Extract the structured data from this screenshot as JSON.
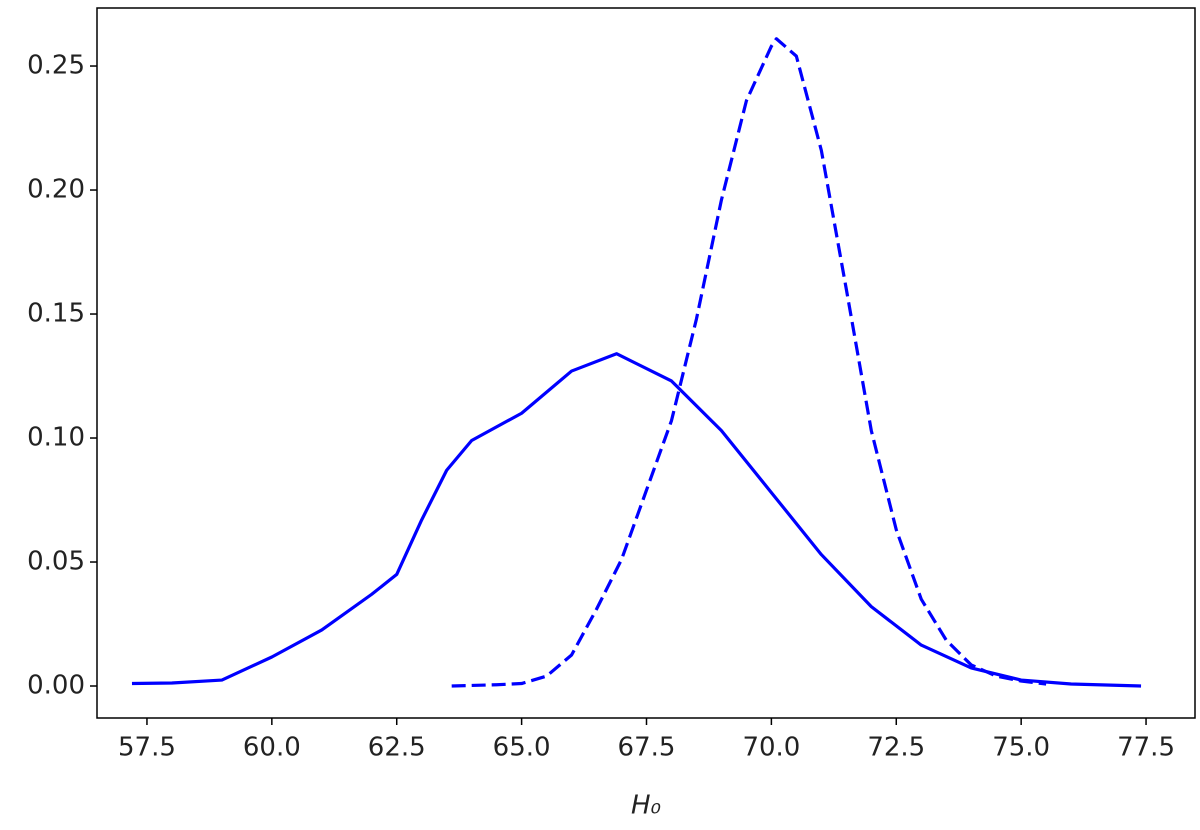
{
  "chart_data": {
    "type": "line",
    "xlabel": "H₀",
    "xlim": [
      56.5,
      78.48
    ],
    "ylim": [
      -0.0129,
      0.2734
    ],
    "xticks": [
      57.5,
      {
        "value": 60,
        "label": "60.0"
      },
      62.5,
      {
        "value": 65,
        "label": "65.0"
      },
      67.5,
      {
        "value": 70,
        "label": "70.0"
      },
      72.5,
      {
        "value": 75,
        "label": "75.0"
      },
      77.5
    ],
    "yticks": [
      {
        "value": 0,
        "label": "0.00"
      },
      0.05,
      {
        "value": 0.1,
        "label": "0.10"
      },
      0.15,
      {
        "value": 0.2,
        "label": "0.20"
      },
      0.25
    ],
    "grid": false,
    "series": [
      {
        "color": "#0000ff",
        "dash": false,
        "x": [
          57.2,
          58,
          59,
          60,
          61,
          62,
          62.5,
          63,
          63.5,
          64,
          65,
          66,
          66.9,
          68,
          69,
          70,
          71,
          72,
          73,
          74,
          75,
          76,
          77.4
        ],
        "values": [
          0.001,
          0.0012,
          0.0024,
          0.0117,
          0.0226,
          0.037,
          0.045,
          0.067,
          0.087,
          0.099,
          0.11,
          0.127,
          0.134,
          0.123,
          0.103,
          0.078,
          0.053,
          0.032,
          0.0165,
          0.0073,
          0.0024,
          0.0008,
          0
        ]
      },
      {
        "color": "#0000ff",
        "dash": true,
        "x": [
          63.6,
          64.5,
          65,
          65.5,
          66,
          66.5,
          67,
          67.5,
          68,
          68.5,
          69,
          69.5,
          70,
          70.1,
          70.5,
          71,
          71.5,
          72,
          72.5,
          73,
          73.5,
          74,
          74.5,
          75,
          75.5
        ],
        "values": [
          0,
          0.0005,
          0.001,
          0.004,
          0.0125,
          0.031,
          0.051,
          0.079,
          0.107,
          0.148,
          0.196,
          0.236,
          0.258,
          0.261,
          0.254,
          0.216,
          0.16,
          0.103,
          0.063,
          0.035,
          0.0185,
          0.0085,
          0.004,
          0.002,
          0.0008
        ]
      }
    ]
  }
}
